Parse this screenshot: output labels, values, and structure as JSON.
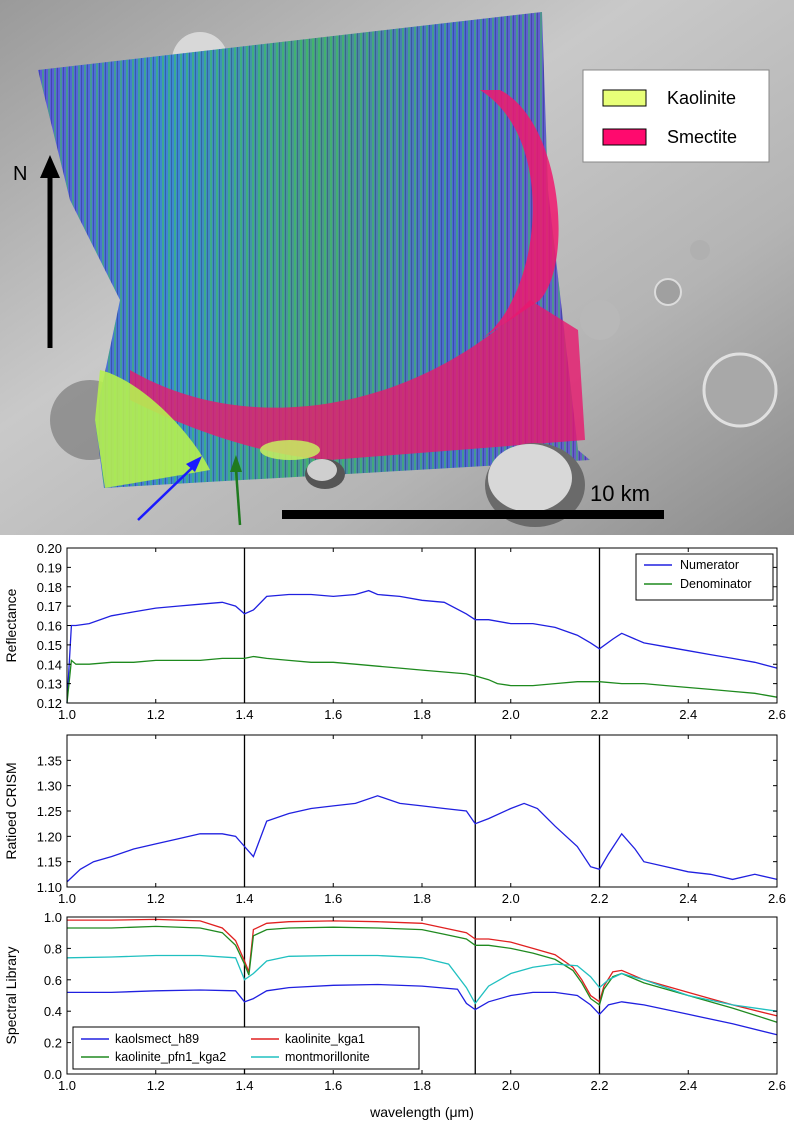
{
  "map": {
    "north_label": "N",
    "scale_label": "10 km",
    "legend": [
      {
        "label": "Kaolinite",
        "color": "#e8ff78"
      },
      {
        "label": "Smectite",
        "color": "#ff0a6e"
      }
    ],
    "arrow_colors": [
      "#1a1aff",
      "#1f7a1f"
    ]
  },
  "xlabel": "wavelength (μm)",
  "chart_data": [
    {
      "type": "line",
      "ylabel": "Reflectance",
      "xlim": [
        1.0,
        2.6
      ],
      "ylim": [
        0.12,
        0.2
      ],
      "xticks": [
        "1.0",
        "1.2",
        "1.4",
        "1.6",
        "1.8",
        "2.0",
        "2.2",
        "2.4",
        "2.6"
      ],
      "yticks": [
        "0.12",
        "0.13",
        "0.14",
        "0.15",
        "0.16",
        "0.17",
        "0.18",
        "0.19",
        "0.20"
      ],
      "vlines": [
        1.4,
        1.92,
        2.2
      ],
      "legend_position": "top-right",
      "series": [
        {
          "name": "Numerator",
          "color": "#2020e0",
          "x": [
            1.0,
            1.01,
            1.02,
            1.05,
            1.1,
            1.15,
            1.2,
            1.25,
            1.3,
            1.35,
            1.38,
            1.4,
            1.42,
            1.45,
            1.5,
            1.55,
            1.6,
            1.65,
            1.68,
            1.7,
            1.75,
            1.8,
            1.85,
            1.9,
            1.92,
            1.95,
            2.0,
            2.05,
            2.1,
            2.15,
            2.18,
            2.2,
            2.23,
            2.25,
            2.3,
            2.35,
            2.4,
            2.45,
            2.5,
            2.55,
            2.6
          ],
          "y": [
            0.12,
            0.16,
            0.16,
            0.161,
            0.165,
            0.167,
            0.169,
            0.17,
            0.171,
            0.172,
            0.17,
            0.166,
            0.168,
            0.175,
            0.176,
            0.176,
            0.175,
            0.176,
            0.178,
            0.176,
            0.175,
            0.173,
            0.172,
            0.166,
            0.163,
            0.163,
            0.161,
            0.161,
            0.159,
            0.155,
            0.151,
            0.148,
            0.153,
            0.156,
            0.151,
            0.149,
            0.147,
            0.145,
            0.143,
            0.141,
            0.138
          ]
        },
        {
          "name": "Denominator",
          "color": "#1e8a1e",
          "x": [
            1.0,
            1.01,
            1.02,
            1.05,
            1.1,
            1.15,
            1.2,
            1.25,
            1.3,
            1.35,
            1.4,
            1.42,
            1.45,
            1.5,
            1.55,
            1.6,
            1.65,
            1.7,
            1.75,
            1.8,
            1.85,
            1.9,
            1.92,
            1.95,
            1.97,
            2.0,
            2.05,
            2.1,
            2.15,
            2.2,
            2.25,
            2.3,
            2.35,
            2.4,
            2.45,
            2.5,
            2.55,
            2.6
          ],
          "y": [
            0.12,
            0.142,
            0.14,
            0.14,
            0.141,
            0.141,
            0.142,
            0.142,
            0.142,
            0.143,
            0.143,
            0.144,
            0.143,
            0.142,
            0.141,
            0.141,
            0.14,
            0.139,
            0.138,
            0.137,
            0.136,
            0.135,
            0.134,
            0.132,
            0.13,
            0.129,
            0.129,
            0.13,
            0.131,
            0.131,
            0.13,
            0.13,
            0.129,
            0.128,
            0.127,
            0.126,
            0.125,
            0.123
          ]
        }
      ]
    },
    {
      "type": "line",
      "ylabel": "Ratioed CRISM",
      "xlim": [
        1.0,
        2.6
      ],
      "ylim": [
        1.1,
        1.4
      ],
      "xticks": [
        "1.0",
        "1.2",
        "1.4",
        "1.6",
        "1.8",
        "2.0",
        "2.2",
        "2.4",
        "2.6"
      ],
      "yticks": [
        "1.10",
        "1.15",
        "1.20",
        "1.25",
        "1.30",
        "1.35"
      ],
      "vlines": [
        1.4,
        1.92,
        2.2
      ],
      "series": [
        {
          "name": "",
          "color": "#2020e0",
          "x": [
            1.0,
            1.03,
            1.06,
            1.1,
            1.15,
            1.2,
            1.25,
            1.3,
            1.35,
            1.38,
            1.4,
            1.42,
            1.45,
            1.5,
            1.55,
            1.6,
            1.65,
            1.7,
            1.75,
            1.8,
            1.85,
            1.9,
            1.92,
            1.95,
            2.0,
            2.03,
            2.06,
            2.1,
            2.15,
            2.18,
            2.2,
            2.22,
            2.25,
            2.28,
            2.3,
            2.35,
            2.4,
            2.45,
            2.5,
            2.55,
            2.6
          ],
          "y": [
            1.11,
            1.135,
            1.15,
            1.16,
            1.175,
            1.185,
            1.195,
            1.205,
            1.205,
            1.2,
            1.18,
            1.16,
            1.23,
            1.245,
            1.255,
            1.26,
            1.265,
            1.28,
            1.265,
            1.26,
            1.255,
            1.25,
            1.225,
            1.235,
            1.255,
            1.265,
            1.255,
            1.22,
            1.18,
            1.14,
            1.135,
            1.165,
            1.205,
            1.175,
            1.15,
            1.14,
            1.13,
            1.125,
            1.115,
            1.125,
            1.115
          ]
        }
      ]
    },
    {
      "type": "line",
      "ylabel": "Spectral Library",
      "xlim": [
        1.0,
        2.6
      ],
      "ylim": [
        0.0,
        1.0
      ],
      "xticks": [
        "1.0",
        "1.2",
        "1.4",
        "1.6",
        "1.8",
        "2.0",
        "2.2",
        "2.4",
        "2.6"
      ],
      "yticks": [
        "0.0",
        "0.2",
        "0.4",
        "0.6",
        "0.8",
        "1.0"
      ],
      "vlines": [
        1.4,
        1.92,
        2.2
      ],
      "legend_position": "bottom-left",
      "series": [
        {
          "name": "kaolsmect_h89",
          "color": "#2020e0",
          "x": [
            1.0,
            1.1,
            1.2,
            1.3,
            1.38,
            1.4,
            1.42,
            1.45,
            1.5,
            1.6,
            1.7,
            1.8,
            1.88,
            1.9,
            1.92,
            1.95,
            2.0,
            2.05,
            2.1,
            2.15,
            2.18,
            2.2,
            2.22,
            2.25,
            2.3,
            2.4,
            2.5,
            2.6
          ],
          "y": [
            0.52,
            0.52,
            0.53,
            0.535,
            0.53,
            0.46,
            0.48,
            0.53,
            0.55,
            0.565,
            0.57,
            0.56,
            0.54,
            0.45,
            0.41,
            0.46,
            0.5,
            0.52,
            0.52,
            0.5,
            0.44,
            0.38,
            0.44,
            0.46,
            0.44,
            0.38,
            0.32,
            0.25
          ]
        },
        {
          "name": "kaolinite_kga1",
          "color": "#e02020",
          "x": [
            1.0,
            1.1,
            1.2,
            1.3,
            1.35,
            1.38,
            1.4,
            1.41,
            1.42,
            1.45,
            1.5,
            1.6,
            1.7,
            1.8,
            1.85,
            1.9,
            1.92,
            1.95,
            2.0,
            2.05,
            2.1,
            2.14,
            2.16,
            2.18,
            2.2,
            2.21,
            2.23,
            2.25,
            2.3,
            2.4,
            2.5,
            2.6
          ],
          "y": [
            0.98,
            0.98,
            0.985,
            0.975,
            0.93,
            0.85,
            0.72,
            0.65,
            0.92,
            0.96,
            0.97,
            0.975,
            0.97,
            0.96,
            0.93,
            0.9,
            0.86,
            0.86,
            0.84,
            0.8,
            0.76,
            0.68,
            0.6,
            0.5,
            0.46,
            0.56,
            0.65,
            0.66,
            0.6,
            0.52,
            0.44,
            0.37
          ]
        },
        {
          "name": "kaolinite_pfn1_kga2",
          "color": "#208a20",
          "x": [
            1.0,
            1.1,
            1.2,
            1.3,
            1.35,
            1.38,
            1.4,
            1.41,
            1.42,
            1.45,
            1.5,
            1.6,
            1.7,
            1.8,
            1.85,
            1.9,
            1.92,
            1.95,
            2.0,
            2.05,
            2.1,
            2.14,
            2.16,
            2.18,
            2.2,
            2.21,
            2.23,
            2.25,
            2.3,
            2.4,
            2.5,
            2.6
          ],
          "y": [
            0.93,
            0.93,
            0.94,
            0.93,
            0.9,
            0.82,
            0.7,
            0.63,
            0.88,
            0.92,
            0.93,
            0.935,
            0.93,
            0.92,
            0.89,
            0.86,
            0.82,
            0.82,
            0.8,
            0.77,
            0.73,
            0.66,
            0.58,
            0.48,
            0.44,
            0.54,
            0.62,
            0.64,
            0.58,
            0.5,
            0.42,
            0.33
          ]
        },
        {
          "name": "montmorillonite",
          "color": "#20c0c0",
          "x": [
            1.0,
            1.1,
            1.2,
            1.3,
            1.38,
            1.4,
            1.42,
            1.45,
            1.5,
            1.6,
            1.7,
            1.8,
            1.86,
            1.9,
            1.92,
            1.95,
            2.0,
            2.05,
            2.1,
            2.15,
            2.18,
            2.2,
            2.22,
            2.25,
            2.3,
            2.4,
            2.5,
            2.6
          ],
          "y": [
            0.74,
            0.745,
            0.755,
            0.755,
            0.74,
            0.6,
            0.64,
            0.72,
            0.75,
            0.755,
            0.755,
            0.74,
            0.7,
            0.55,
            0.45,
            0.56,
            0.64,
            0.68,
            0.7,
            0.69,
            0.62,
            0.55,
            0.6,
            0.64,
            0.6,
            0.5,
            0.44,
            0.4
          ]
        }
      ]
    }
  ]
}
